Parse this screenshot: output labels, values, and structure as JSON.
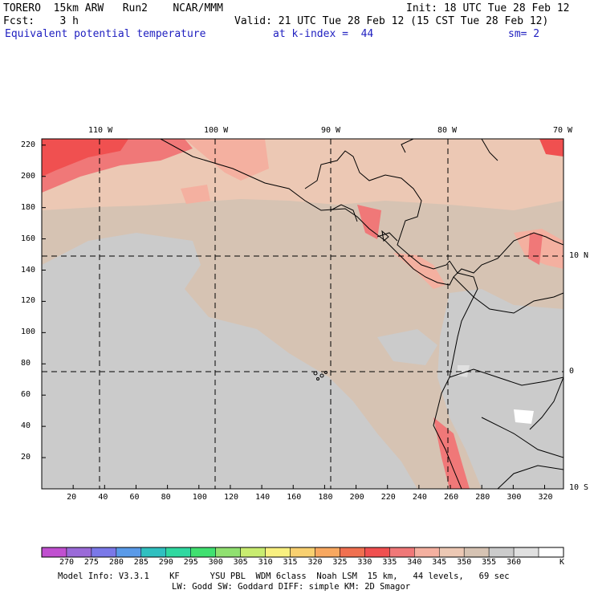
{
  "header": {
    "model": "TORERO  15km ARW   Run2    NCAR/MMM",
    "init": "Init: 18 UTC Tue 28 Feb 12",
    "fcst": "Fcst:    3 h",
    "valid": "Valid: 21 UTC Tue 28 Feb 12 (15 CST Tue 28 Feb 12)",
    "field": "Equivalent potential temperature",
    "kindex": "at k-index =  44",
    "smooth": "sm= 2"
  },
  "map": {
    "lon_labels": [
      "110 W",
      "100 W",
      "90 W",
      "80 W",
      "70 W"
    ],
    "lat_labels": [
      "10 N",
      "0",
      "10 S"
    ],
    "x_ticks": [
      "20",
      "40",
      "60",
      "80",
      "100",
      "120",
      "140",
      "160",
      "180",
      "200",
      "220",
      "240",
      "260",
      "280",
      "300",
      "320"
    ],
    "y_ticks": [
      "220",
      "200",
      "180",
      "160",
      "140",
      "120",
      "100",
      "80",
      "60",
      "40",
      "20"
    ]
  },
  "colorbar": {
    "labels": [
      "270",
      "275",
      "280",
      "285",
      "290",
      "295",
      "300",
      "305",
      "310",
      "315",
      "320",
      "325",
      "330",
      "335",
      "340",
      "345",
      "350",
      "355",
      "360"
    ],
    "unit": "K",
    "colors": [
      "#c050d0",
      "#9a6ad8",
      "#7a78e8",
      "#5a9ae8",
      "#30c0c0",
      "#30d8a0",
      "#40e070",
      "#90e070",
      "#c8ec70",
      "#f8f080",
      "#f8d070",
      "#f8a860",
      "#f07050",
      "#f05050",
      "#f07878",
      "#f4b0a0",
      "#ecc8b4",
      "#d6c3b3",
      "#cbcbcb",
      "#e0e0e0",
      "#ffffff"
    ]
  },
  "footer": {
    "line1": "Model Info: V3.3.1    KF      YSU PBL  WDM 6class  Noah LSM  15 km,   44 levels,   69 sec",
    "line2": "LW: Godd SW: Goddard DIFF: simple KM: 2D Smagor"
  }
}
